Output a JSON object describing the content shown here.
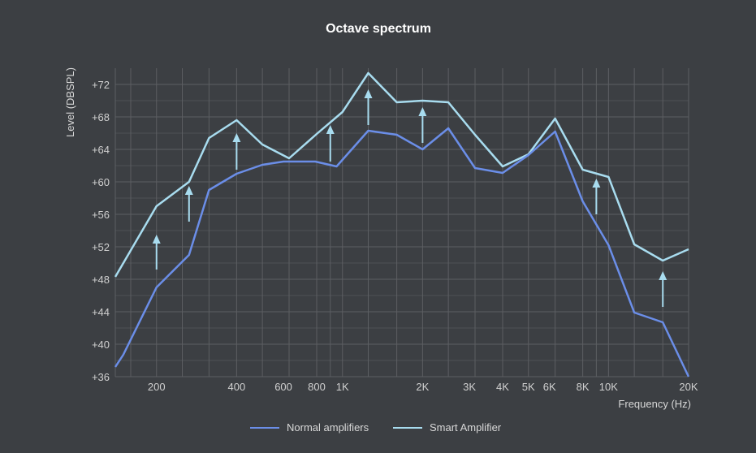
{
  "chart_data": {
    "type": "line",
    "title": "Octave spectrum",
    "xlabel": "Frequency (Hz)",
    "ylabel": "Level (DBSPL)",
    "x_scale": "log",
    "xlim": [
      140,
      20000
    ],
    "ylim": [
      36,
      74
    ],
    "grid": true,
    "legend_position": "bottom-center",
    "y_ticks": [
      {
        "value": 36,
        "label": "+36"
      },
      {
        "value": 40,
        "label": "+40"
      },
      {
        "value": 44,
        "label": "+44"
      },
      {
        "value": 48,
        "label": "+48"
      },
      {
        "value": 52,
        "label": "+52"
      },
      {
        "value": 56,
        "label": "+56"
      },
      {
        "value": 60,
        "label": "+60"
      },
      {
        "value": 64,
        "label": "+64"
      },
      {
        "value": 68,
        "label": "+68"
      },
      {
        "value": 72,
        "label": "+72"
      }
    ],
    "x_ticks": [
      {
        "value": 200,
        "label": "200"
      },
      {
        "value": 400,
        "label": "400"
      },
      {
        "value": 600,
        "label": "600"
      },
      {
        "value": 800,
        "label": "800"
      },
      {
        "value": 1000,
        "label": "1K"
      },
      {
        "value": 2000,
        "label": "2K"
      },
      {
        "value": 3000,
        "label": "3K"
      },
      {
        "value": 4000,
        "label": "4K"
      },
      {
        "value": 5000,
        "label": "5K"
      },
      {
        "value": 6000,
        "label": "6K"
      },
      {
        "value": 8000,
        "label": "8K"
      },
      {
        "value": 10000,
        "label": "10K"
      },
      {
        "value": 20000,
        "label": "20K"
      }
    ],
    "x_gridlines": [
      140,
      160,
      200,
      250,
      315,
      400,
      500,
      630,
      800,
      900,
      1000,
      1250,
      1600,
      2000,
      2500,
      3150,
      4000,
      5000,
      6300,
      8000,
      9000,
      10000,
      12500,
      16000,
      20000
    ],
    "series": [
      {
        "name": "Normal amplifiers",
        "color": "#6b8ee8",
        "points": [
          [
            140,
            37.2
          ],
          [
            150,
            38.7
          ],
          [
            200,
            47.0
          ],
          [
            265,
            51.0
          ],
          [
            315,
            59.0
          ],
          [
            400,
            61.0
          ],
          [
            500,
            62.1
          ],
          [
            600,
            62.5
          ],
          [
            790,
            62.5
          ],
          [
            950,
            61.9
          ],
          [
            1250,
            66.3
          ],
          [
            1600,
            65.8
          ],
          [
            2000,
            64.0
          ],
          [
            2500,
            66.6
          ],
          [
            3150,
            61.7
          ],
          [
            4000,
            61.1
          ],
          [
            5000,
            63.3
          ],
          [
            6300,
            66.2
          ],
          [
            8000,
            57.6
          ],
          [
            10000,
            52.2
          ],
          [
            12500,
            43.9
          ],
          [
            16000,
            42.7
          ],
          [
            20000,
            36.0
          ]
        ]
      },
      {
        "name": "Smart Amplifier",
        "color": "#a8dcef",
        "points": [
          [
            140,
            48.3
          ],
          [
            200,
            57.0
          ],
          [
            265,
            60.0
          ],
          [
            315,
            65.4
          ],
          [
            400,
            67.6
          ],
          [
            500,
            64.6
          ],
          [
            630,
            62.9
          ],
          [
            800,
            65.9
          ],
          [
            1000,
            68.6
          ],
          [
            1250,
            73.4
          ],
          [
            1600,
            69.8
          ],
          [
            2000,
            70.0
          ],
          [
            2500,
            69.8
          ],
          [
            3150,
            65.8
          ],
          [
            4000,
            61.9
          ],
          [
            5000,
            63.4
          ],
          [
            6300,
            67.8
          ],
          [
            8000,
            61.5
          ],
          [
            10000,
            60.6
          ],
          [
            12500,
            52.3
          ],
          [
            16000,
            50.3
          ],
          [
            20000,
            51.7
          ]
        ]
      }
    ],
    "arrows": [
      {
        "x": 200,
        "from": 49.2,
        "to": 53.5
      },
      {
        "x": 265,
        "from": 55.1,
        "to": 59.5
      },
      {
        "x": 400,
        "from": 61.5,
        "to": 66.0
      },
      {
        "x": 900,
        "from": 62.5,
        "to": 67.0
      },
      {
        "x": 1250,
        "from": 67.0,
        "to": 71.4
      },
      {
        "x": 2000,
        "from": 64.8,
        "to": 69.2
      },
      {
        "x": 9000,
        "from": 56.0,
        "to": 60.4
      },
      {
        "x": 16000,
        "from": 44.6,
        "to": 49.0
      }
    ],
    "arrow_color": "#a8dcef"
  }
}
